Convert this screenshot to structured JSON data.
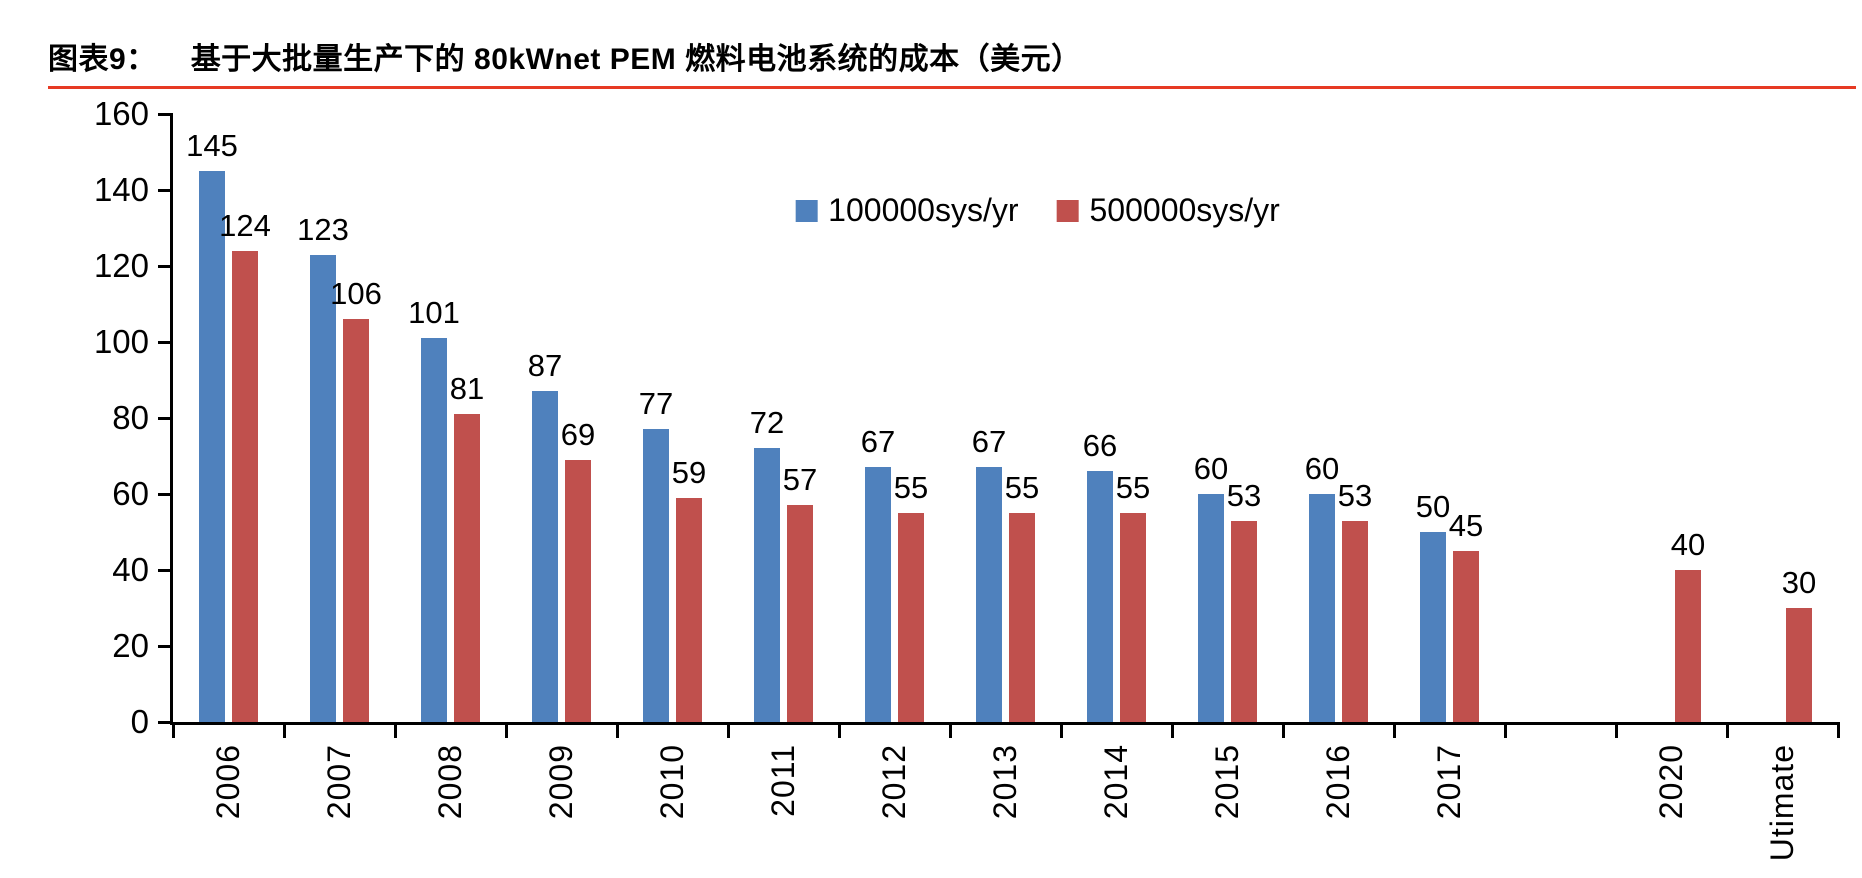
{
  "header": {
    "chart_label": "图表9：",
    "chart_title": "基于大批量生产下的 80kWnet PEM 燃料电池系统的成本（美元）",
    "rule_color": "#e63a23"
  },
  "chart_data": {
    "type": "bar",
    "title": "基于大批量生产下的 80kWnet PEM 燃料电池系统的成本（美元）",
    "categories": [
      "2006",
      "2007",
      "2008",
      "2009",
      "2010",
      "2011",
      "2012",
      "2013",
      "2014",
      "2015",
      "2016",
      "2017",
      "",
      "2020",
      "Utimate"
    ],
    "series": [
      {
        "name": "100000sys/yr",
        "color": "#4F81BD",
        "values": [
          145,
          123,
          101,
          87,
          77,
          72,
          67,
          67,
          66,
          60,
          60,
          50,
          null,
          null,
          null
        ]
      },
      {
        "name": "500000sys/yr",
        "color": "#C0504D",
        "values": [
          124,
          106,
          81,
          69,
          59,
          57,
          55,
          55,
          55,
          53,
          53,
          45,
          null,
          40,
          30
        ]
      }
    ],
    "ylim": [
      0,
      160
    ],
    "yticks": [
      0,
      20,
      40,
      60,
      80,
      100,
      120,
      140,
      160
    ],
    "xlabel": "",
    "ylabel": "",
    "legend_position": "top-center",
    "grid": false,
    "bar_value_labels": true,
    "axis_color": "#000000"
  }
}
